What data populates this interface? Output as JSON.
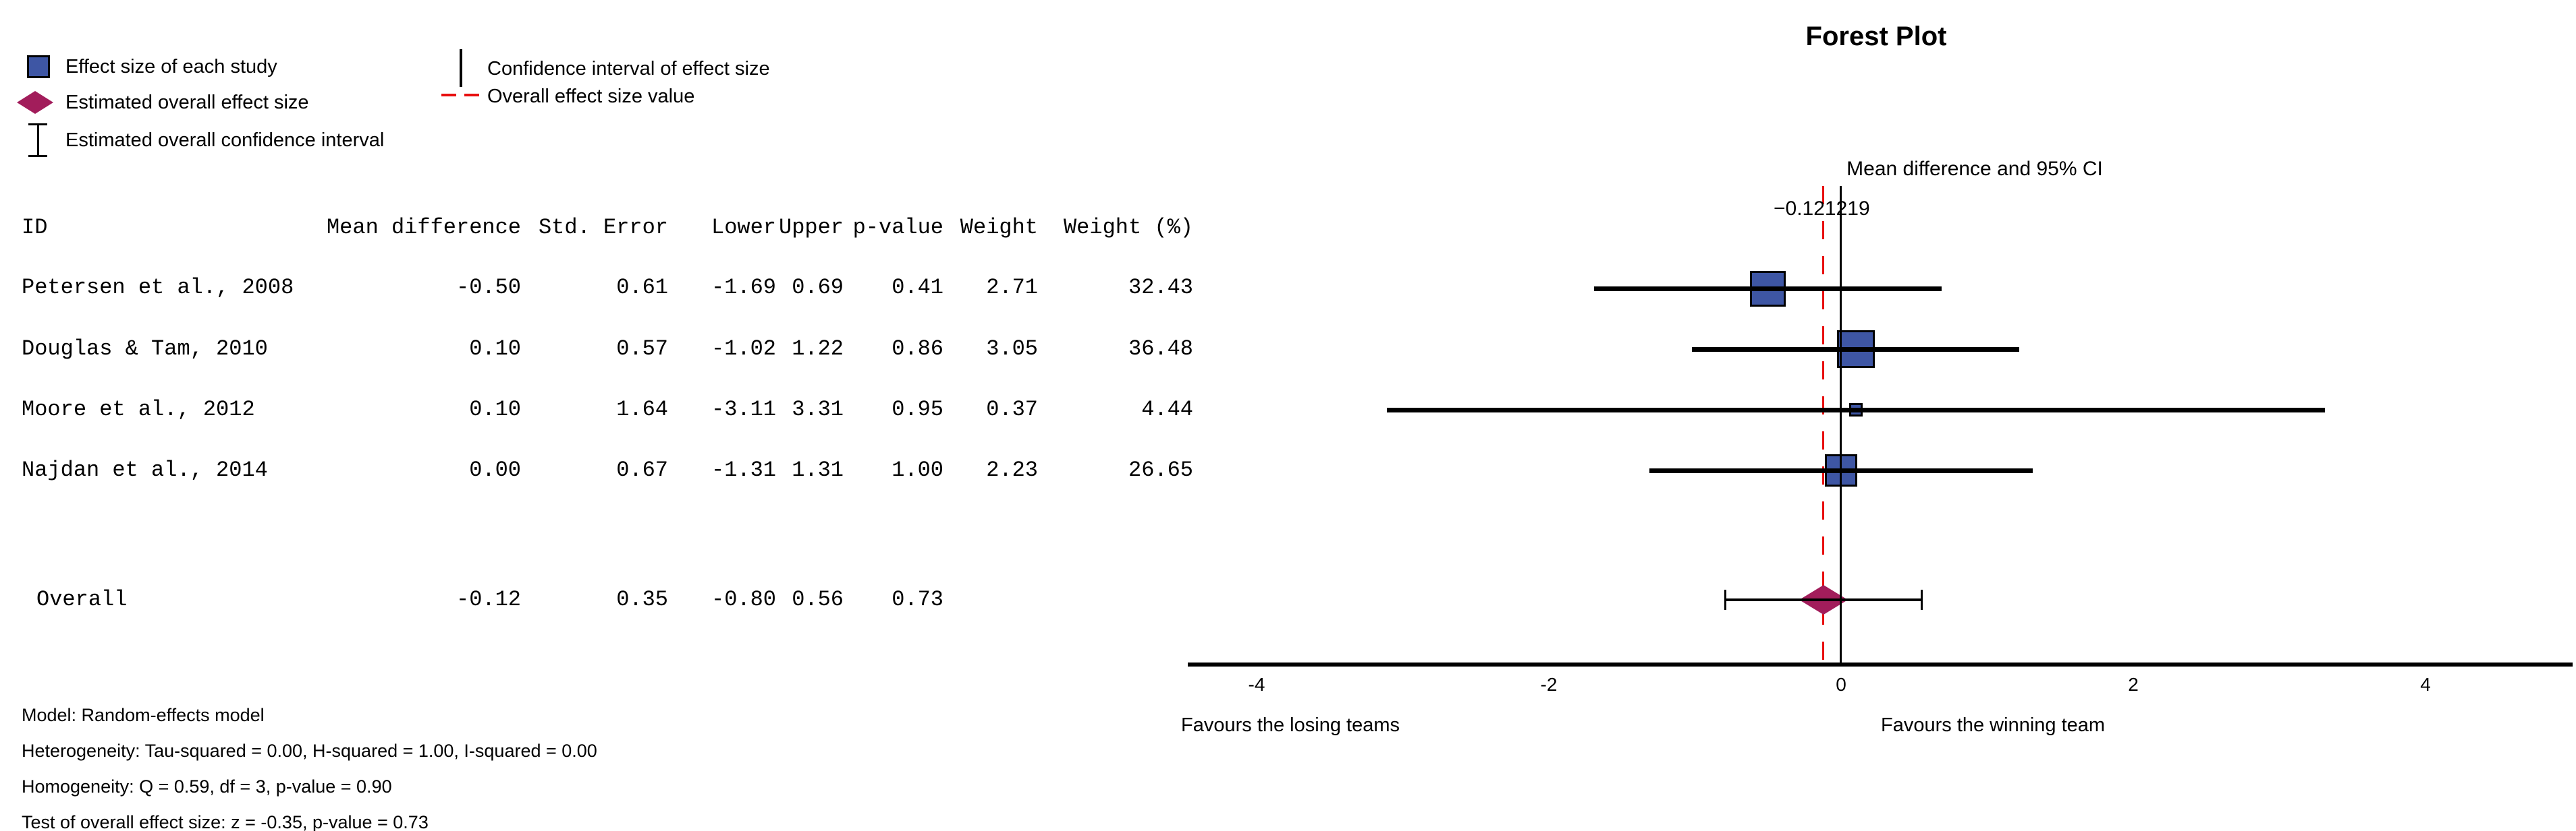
{
  "title": "Forest Plot",
  "colors": {
    "study_square": "#3E56A4",
    "overall_diamond": "#A21D5B",
    "dashed_line": "#E80F0F",
    "line": "#000000"
  },
  "legend": {
    "items": [
      {
        "icon": "effect-size-square",
        "label": "Effect size of each study"
      },
      {
        "icon": "overall-effect-diamond",
        "label": "Estimated overall effect size"
      },
      {
        "icon": "overall-ci-ibar",
        "label": "Estimated overall confidence interval"
      },
      {
        "icon": "ci-vertical-line",
        "label": "Confidence interval of effect size"
      },
      {
        "icon": "overall-value-dashed-line",
        "label": "Overall effect size value"
      }
    ]
  },
  "table": {
    "columns": [
      "ID",
      "Mean difference",
      "Std. Error",
      "Lower",
      "Upper",
      "p-value",
      "Weight",
      "Weight (%)"
    ],
    "rows": [
      [
        "Petersen et al., 2008",
        "-0.50",
        "0.61",
        "-1.69",
        "0.69",
        "0.41",
        "2.71",
        "32.43"
      ],
      [
        "Douglas & Tam, 2010",
        "0.10",
        "0.57",
        "-1.02",
        "1.22",
        "0.86",
        "3.05",
        "36.48"
      ],
      [
        "Moore et al., 2012",
        "0.10",
        "1.64",
        "-3.11",
        "3.31",
        "0.95",
        "0.37",
        "4.44"
      ],
      [
        "Najdan et al., 2014",
        "0.00",
        "0.67",
        "-1.31",
        "1.31",
        "1.00",
        "2.23",
        "26.65"
      ]
    ],
    "overall_row": [
      "Overall",
      "-0.12",
      "0.35",
      "-0.80",
      "0.56",
      "0.73",
      "",
      ""
    ]
  },
  "notes": [
    "Model: Random-effects model",
    "Heterogeneity: Tau-squared = 0.00, H-squared = 1.00, I-squared = 0.00",
    "Homogeneity: Q = 0.59, df = 3, p-value = 0.90",
    "Test of overall effect size: z = -0.35, p-value = 0.73"
  ],
  "chart_data": {
    "type": "forest",
    "title": "Forest Plot",
    "axis_label": "Mean difference and 95% CI",
    "overall_value_label": "−0.121219",
    "overall_value": -0.121219,
    "x_ticks": [
      -4,
      -2,
      0,
      2,
      4
    ],
    "xlim": [
      -4.5,
      5.0
    ],
    "x_axis_left_label": "Favours the losing teams",
    "x_axis_right_label": "Favours the winning team",
    "studies": [
      {
        "id": "Petersen et al., 2008",
        "mean": -0.5,
        "std_error": 0.61,
        "lower": -1.69,
        "upper": 0.69,
        "p_value": 0.41,
        "weight": 2.71,
        "weight_pct": 32.43
      },
      {
        "id": "Douglas & Tam, 2010",
        "mean": 0.1,
        "std_error": 0.57,
        "lower": -1.02,
        "upper": 1.22,
        "p_value": 0.86,
        "weight": 3.05,
        "weight_pct": 36.48
      },
      {
        "id": "Moore et al., 2012",
        "mean": 0.1,
        "std_error": 1.64,
        "lower": -3.11,
        "upper": 3.31,
        "p_value": 0.95,
        "weight": 0.37,
        "weight_pct": 4.44
      },
      {
        "id": "Najdan et al., 2014",
        "mean": 0.0,
        "std_error": 0.67,
        "lower": -1.31,
        "upper": 1.31,
        "p_value": 1.0,
        "weight": 2.23,
        "weight_pct": 26.65
      }
    ],
    "overall": {
      "id": "Overall",
      "mean": -0.12,
      "std_error": 0.35,
      "lower": -0.8,
      "upper": 0.56,
      "p_value": 0.73
    }
  }
}
